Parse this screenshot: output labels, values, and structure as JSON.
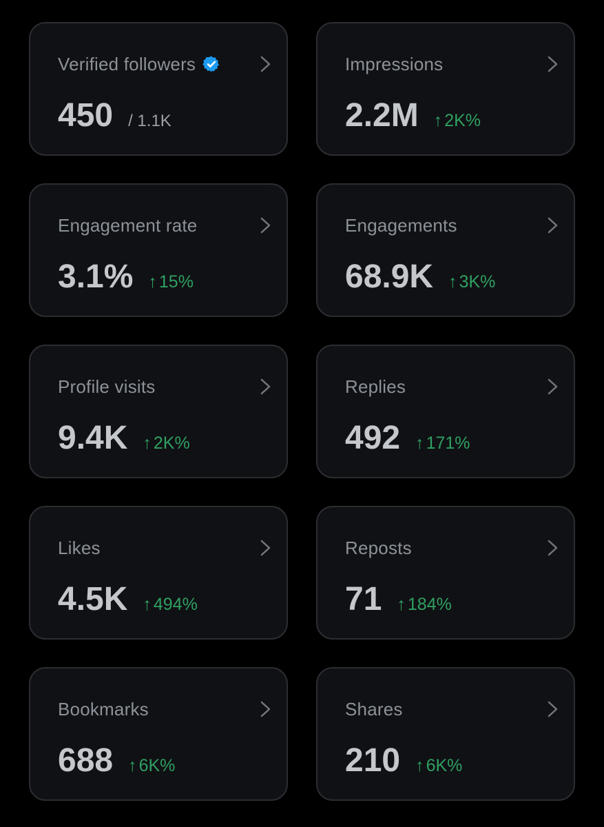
{
  "colors": {
    "background": "#000000",
    "card": "#101114",
    "card_border": "#2b2d31",
    "label": "#8c9299",
    "value": "#c4c7cc",
    "delta_up": "#2fa062",
    "verified": "#1d9bf0"
  },
  "arrow_glyph": "↑",
  "cards": [
    {
      "label": "Verified followers",
      "value": "450",
      "sub": "/ 1.1K"
    },
    {
      "label": "Impressions",
      "value": "2.2M",
      "delta": "2K%"
    },
    {
      "label": "Engagement rate",
      "value": "3.1%",
      "delta": "15%"
    },
    {
      "label": "Engagements",
      "value": "68.9K",
      "delta": "3K%"
    },
    {
      "label": "Profile visits",
      "value": "9.4K",
      "delta": "2K%"
    },
    {
      "label": "Replies",
      "value": "492",
      "delta": "171%"
    },
    {
      "label": "Likes",
      "value": "4.5K",
      "delta": "494%"
    },
    {
      "label": "Reposts",
      "value": "71",
      "delta": "184%"
    },
    {
      "label": "Bookmarks",
      "value": "688",
      "delta": "6K%"
    },
    {
      "label": "Shares",
      "value": "210",
      "delta": "6K%"
    }
  ]
}
